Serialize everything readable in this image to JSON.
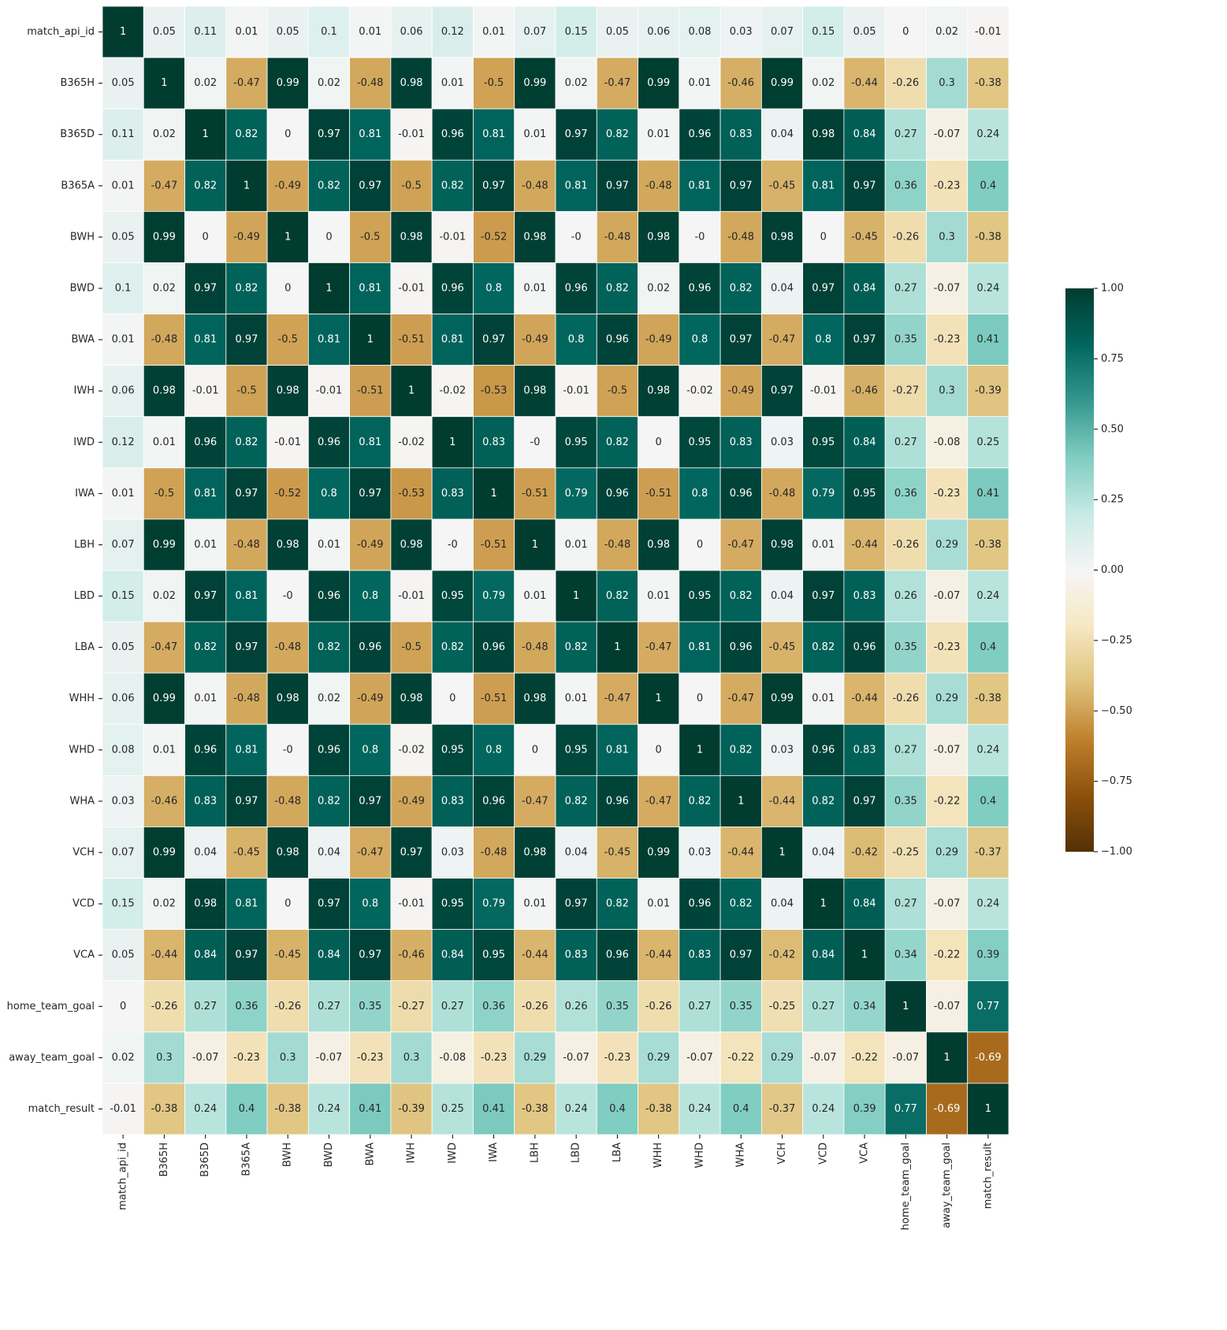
{
  "chart_data": {
    "type": "heatmap",
    "title": "",
    "xlabel": "",
    "ylabel": "",
    "labels": [
      "match_api_id",
      "B365H",
      "B365D",
      "B365A",
      "BWH",
      "BWD",
      "BWA",
      "IWH",
      "IWD",
      "IWA",
      "LBH",
      "LBD",
      "LBA",
      "WHH",
      "WHD",
      "WHA",
      "VCH",
      "VCD",
      "VCA",
      "home_team_goal",
      "away_team_goal",
      "match_result"
    ],
    "matrix": [
      [
        "1",
        "0.05",
        "0.11",
        "0.01",
        "0.05",
        "0.1",
        "0.01",
        "0.06",
        "0.12",
        "0.01",
        "0.07",
        "0.15",
        "0.05",
        "0.06",
        "0.08",
        "0.03",
        "0.07",
        "0.15",
        "0.05",
        "0",
        "0.02",
        "-0.01"
      ],
      [
        "0.05",
        "1",
        "0.02",
        "-0.47",
        "0.99",
        "0.02",
        "-0.48",
        "0.98",
        "0.01",
        "-0.5",
        "0.99",
        "0.02",
        "-0.47",
        "0.99",
        "0.01",
        "-0.46",
        "0.99",
        "0.02",
        "-0.44",
        "-0.26",
        "0.3",
        "-0.38"
      ],
      [
        "0.11",
        "0.02",
        "1",
        "0.82",
        "0",
        "0.97",
        "0.81",
        "-0.01",
        "0.96",
        "0.81",
        "0.01",
        "0.97",
        "0.82",
        "0.01",
        "0.96",
        "0.83",
        "0.04",
        "0.98",
        "0.84",
        "0.27",
        "-0.07",
        "0.24"
      ],
      [
        "0.01",
        "-0.47",
        "0.82",
        "1",
        "-0.49",
        "0.82",
        "0.97",
        "-0.5",
        "0.82",
        "0.97",
        "-0.48",
        "0.81",
        "0.97",
        "-0.48",
        "0.81",
        "0.97",
        "-0.45",
        "0.81",
        "0.97",
        "0.36",
        "-0.23",
        "0.4"
      ],
      [
        "0.05",
        "0.99",
        "0",
        "-0.49",
        "1",
        "0",
        "-0.5",
        "0.98",
        "-0.01",
        "-0.52",
        "0.98",
        "-0",
        "-0.48",
        "0.98",
        "-0",
        "-0.48",
        "0.98",
        "0",
        "-0.45",
        "-0.26",
        "0.3",
        "-0.38"
      ],
      [
        "0.1",
        "0.02",
        "0.97",
        "0.82",
        "0",
        "1",
        "0.81",
        "-0.01",
        "0.96",
        "0.8",
        "0.01",
        "0.96",
        "0.82",
        "0.02",
        "0.96",
        "0.82",
        "0.04",
        "0.97",
        "0.84",
        "0.27",
        "-0.07",
        "0.24"
      ],
      [
        "0.01",
        "-0.48",
        "0.81",
        "0.97",
        "-0.5",
        "0.81",
        "1",
        "-0.51",
        "0.81",
        "0.97",
        "-0.49",
        "0.8",
        "0.96",
        "-0.49",
        "0.8",
        "0.97",
        "-0.47",
        "0.8",
        "0.97",
        "0.35",
        "-0.23",
        "0.41"
      ],
      [
        "0.06",
        "0.98",
        "-0.01",
        "-0.5",
        "0.98",
        "-0.01",
        "-0.51",
        "1",
        "-0.02",
        "-0.53",
        "0.98",
        "-0.01",
        "-0.5",
        "0.98",
        "-0.02",
        "-0.49",
        "0.97",
        "-0.01",
        "-0.46",
        "-0.27",
        "0.3",
        "-0.39"
      ],
      [
        "0.12",
        "0.01",
        "0.96",
        "0.82",
        "-0.01",
        "0.96",
        "0.81",
        "-0.02",
        "1",
        "0.83",
        "-0",
        "0.95",
        "0.82",
        "0",
        "0.95",
        "0.83",
        "0.03",
        "0.95",
        "0.84",
        "0.27",
        "-0.08",
        "0.25"
      ],
      [
        "0.01",
        "-0.5",
        "0.81",
        "0.97",
        "-0.52",
        "0.8",
        "0.97",
        "-0.53",
        "0.83",
        "1",
        "-0.51",
        "0.79",
        "0.96",
        "-0.51",
        "0.8",
        "0.96",
        "-0.48",
        "0.79",
        "0.95",
        "0.36",
        "-0.23",
        "0.41"
      ],
      [
        "0.07",
        "0.99",
        "0.01",
        "-0.48",
        "0.98",
        "0.01",
        "-0.49",
        "0.98",
        "-0",
        "-0.51",
        "1",
        "0.01",
        "-0.48",
        "0.98",
        "0",
        "-0.47",
        "0.98",
        "0.01",
        "-0.44",
        "-0.26",
        "0.29",
        "-0.38"
      ],
      [
        "0.15",
        "0.02",
        "0.97",
        "0.81",
        "-0",
        "0.96",
        "0.8",
        "-0.01",
        "0.95",
        "0.79",
        "0.01",
        "1",
        "0.82",
        "0.01",
        "0.95",
        "0.82",
        "0.04",
        "0.97",
        "0.83",
        "0.26",
        "-0.07",
        "0.24"
      ],
      [
        "0.05",
        "-0.47",
        "0.82",
        "0.97",
        "-0.48",
        "0.82",
        "0.96",
        "-0.5",
        "0.82",
        "0.96",
        "-0.48",
        "0.82",
        "1",
        "-0.47",
        "0.81",
        "0.96",
        "-0.45",
        "0.82",
        "0.96",
        "0.35",
        "-0.23",
        "0.4"
      ],
      [
        "0.06",
        "0.99",
        "0.01",
        "-0.48",
        "0.98",
        "0.02",
        "-0.49",
        "0.98",
        "0",
        "-0.51",
        "0.98",
        "0.01",
        "-0.47",
        "1",
        "0",
        "-0.47",
        "0.99",
        "0.01",
        "-0.44",
        "-0.26",
        "0.29",
        "-0.38"
      ],
      [
        "0.08",
        "0.01",
        "0.96",
        "0.81",
        "-0",
        "0.96",
        "0.8",
        "-0.02",
        "0.95",
        "0.8",
        "0",
        "0.95",
        "0.81",
        "0",
        "1",
        "0.82",
        "0.03",
        "0.96",
        "0.83",
        "0.27",
        "-0.07",
        "0.24"
      ],
      [
        "0.03",
        "-0.46",
        "0.83",
        "0.97",
        "-0.48",
        "0.82",
        "0.97",
        "-0.49",
        "0.83",
        "0.96",
        "-0.47",
        "0.82",
        "0.96",
        "-0.47",
        "0.82",
        "1",
        "-0.44",
        "0.82",
        "0.97",
        "0.35",
        "-0.22",
        "0.4"
      ],
      [
        "0.07",
        "0.99",
        "0.04",
        "-0.45",
        "0.98",
        "0.04",
        "-0.47",
        "0.97",
        "0.03",
        "-0.48",
        "0.98",
        "0.04",
        "-0.45",
        "0.99",
        "0.03",
        "-0.44",
        "1",
        "0.04",
        "-0.42",
        "-0.25",
        "0.29",
        "-0.37"
      ],
      [
        "0.15",
        "0.02",
        "0.98",
        "0.81",
        "0",
        "0.97",
        "0.8",
        "-0.01",
        "0.95",
        "0.79",
        "0.01",
        "0.97",
        "0.82",
        "0.01",
        "0.96",
        "0.82",
        "0.04",
        "1",
        "0.84",
        "0.27",
        "-0.07",
        "0.24"
      ],
      [
        "0.05",
        "-0.44",
        "0.84",
        "0.97",
        "-0.45",
        "0.84",
        "0.97",
        "-0.46",
        "0.84",
        "0.95",
        "-0.44",
        "0.83",
        "0.96",
        "-0.44",
        "0.83",
        "0.97",
        "-0.42",
        "0.84",
        "1",
        "0.34",
        "-0.22",
        "0.39"
      ],
      [
        "0",
        "-0.26",
        "0.27",
        "0.36",
        "-0.26",
        "0.27",
        "0.35",
        "-0.27",
        "0.27",
        "0.36",
        "-0.26",
        "0.26",
        "0.35",
        "-0.26",
        "0.27",
        "0.35",
        "-0.25",
        "0.27",
        "0.34",
        "1",
        "-0.07",
        "0.77"
      ],
      [
        "0.02",
        "0.3",
        "-0.07",
        "-0.23",
        "0.3",
        "-0.07",
        "-0.23",
        "0.3",
        "-0.08",
        "-0.23",
        "0.29",
        "-0.07",
        "-0.23",
        "0.29",
        "-0.07",
        "-0.22",
        "0.29",
        "-0.07",
        "-0.22",
        "-0.07",
        "1",
        "-0.69"
      ],
      [
        "-0.01",
        "-0.38",
        "0.24",
        "0.4",
        "-0.38",
        "0.24",
        "0.41",
        "-0.39",
        "0.25",
        "0.41",
        "-0.38",
        "0.24",
        "0.4",
        "-0.38",
        "0.24",
        "0.4",
        "-0.37",
        "0.24",
        "0.39",
        "0.77",
        "-0.69",
        "1"
      ]
    ],
    "colorbar": {
      "range": [
        -1,
        1
      ],
      "ticks": [
        "1.00",
        "0.75",
        "0.50",
        "0.25",
        "0.00",
        "−0.25",
        "−0.50",
        "−0.75",
        "−1.00"
      ],
      "tick_values": [
        1,
        0.75,
        0.5,
        0.25,
        0,
        -0.25,
        -0.5,
        -0.75,
        -1
      ],
      "colormap": "BrBG"
    },
    "grid": false,
    "legend": "colorbar right"
  }
}
